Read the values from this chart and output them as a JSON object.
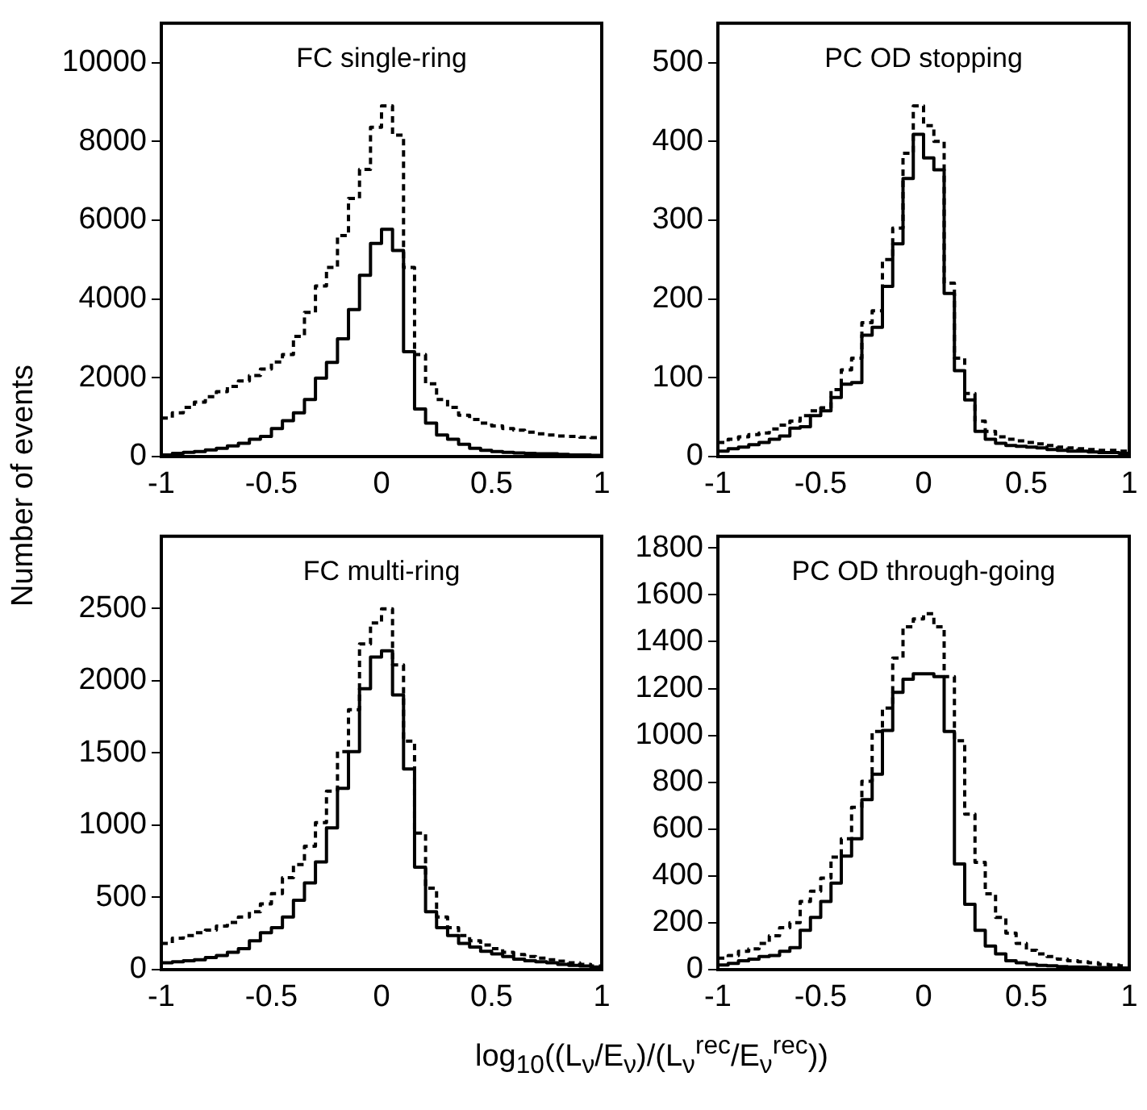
{
  "chart_data": [
    {
      "type": "histogram",
      "title": "FC single-ring",
      "ylabel": "Number of events",
      "bins": [
        -1,
        -0.95,
        -0.9,
        -0.85,
        -0.8,
        -0.75,
        -0.7,
        -0.65,
        -0.6,
        -0.55,
        -0.5,
        -0.45,
        -0.4,
        -0.35,
        -0.3,
        -0.25,
        -0.2,
        -0.15,
        -0.1,
        -0.05,
        0,
        0.05,
        0.1,
        0.15,
        0.2,
        0.25,
        0.3,
        0.35,
        0.4,
        0.45,
        0.5,
        0.55,
        0.6,
        0.65,
        0.7,
        0.75,
        0.8,
        0.85,
        0.9,
        0.95,
        1
      ],
      "series": [
        {
          "color": "#000000",
          "line_style": "solid",
          "values": [
            40,
            80,
            110,
            130,
            170,
            210,
            270,
            340,
            440,
            510,
            710,
            910,
            1110,
            1450,
            1990,
            2390,
            2990,
            3730,
            4600,
            5410,
            5770,
            5230,
            2660,
            1210,
            850,
            550,
            440,
            310,
            210,
            160,
            130,
            110,
            90,
            80,
            70,
            70,
            55,
            40,
            40,
            30
          ]
        },
        {
          "color": "#000000",
          "line_style": "dashed",
          "values": [
            980,
            1110,
            1250,
            1380,
            1520,
            1650,
            1780,
            1920,
            2060,
            2220,
            2400,
            2590,
            3050,
            3660,
            4330,
            4800,
            5610,
            6550,
            7290,
            8360,
            8900,
            8160,
            4800,
            2590,
            1850,
            1450,
            1250,
            1050,
            940,
            850,
            780,
            710,
            670,
            620,
            580,
            550,
            520,
            510,
            490,
            480
          ]
        }
      ],
      "xlim": [
        -1,
        1
      ],
      "xticks": [
        -1,
        -0.5,
        0,
        0.5,
        1
      ],
      "ylim": [
        0,
        11000
      ],
      "yticks": [
        0,
        2000,
        4000,
        6000,
        8000,
        10000
      ],
      "grid": false,
      "legend": false
    },
    {
      "type": "histogram",
      "title": "PC OD stopping",
      "bins": [
        -1,
        -0.95,
        -0.9,
        -0.85,
        -0.8,
        -0.75,
        -0.7,
        -0.65,
        -0.6,
        -0.55,
        -0.5,
        -0.45,
        -0.4,
        -0.35,
        -0.3,
        -0.25,
        -0.2,
        -0.15,
        -0.1,
        -0.05,
        0,
        0.05,
        0.1,
        0.15,
        0.2,
        0.25,
        0.3,
        0.35,
        0.4,
        0.45,
        0.5,
        0.55,
        0.6,
        0.65,
        0.7,
        0.75,
        0.8,
        0.85,
        0.9,
        0.95,
        1
      ],
      "series": [
        {
          "color": "#000000",
          "line_style": "solid",
          "values": [
            7,
            10,
            12,
            15,
            18,
            22,
            26,
            36,
            38,
            52,
            58,
            75,
            92,
            94,
            154,
            164,
            216,
            270,
            353,
            409,
            379,
            364,
            207,
            109,
            72,
            32,
            22,
            17,
            14,
            13,
            12,
            11,
            9,
            8,
            7,
            7,
            6,
            5,
            5,
            4
          ]
        },
        {
          "color": "#000000",
          "line_style": "dashed",
          "values": [
            18,
            22,
            25,
            28,
            30,
            35,
            40,
            45,
            52,
            58,
            62,
            85,
            110,
            125,
            170,
            185,
            250,
            290,
            385,
            445,
            420,
            400,
            220,
            125,
            80,
            45,
            32,
            25,
            22,
            20,
            18,
            16,
            14,
            12,
            11,
            10,
            9,
            8,
            8,
            7
          ]
        }
      ],
      "xlim": [
        -1,
        1
      ],
      "xticks": [
        -1,
        -0.5,
        0,
        0.5,
        1
      ],
      "ylim": [
        0,
        550
      ],
      "yticks": [
        0,
        100,
        200,
        300,
        400,
        500
      ],
      "grid": false,
      "legend": false
    },
    {
      "type": "histogram",
      "title": "FC multi-ring",
      "xlabel": "log$_{10}$((L$_{ν}$/E$_{ν}$)/(L$_{ν}$$^{rec}$/E$_{ν}$$^{rec}$))",
      "bins": [
        -1,
        -0.95,
        -0.9,
        -0.85,
        -0.8,
        -0.75,
        -0.7,
        -0.65,
        -0.6,
        -0.55,
        -0.5,
        -0.45,
        -0.4,
        -0.35,
        -0.3,
        -0.25,
        -0.2,
        -0.15,
        -0.1,
        -0.05,
        0,
        0.05,
        0.1,
        0.15,
        0.2,
        0.25,
        0.3,
        0.35,
        0.4,
        0.45,
        0.5,
        0.55,
        0.6,
        0.65,
        0.7,
        0.75,
        0.8,
        0.85,
        0.9,
        0.95,
        1
      ],
      "series": [
        {
          "color": "#000000",
          "line_style": "solid",
          "values": [
            47,
            55,
            62,
            69,
            84,
            98,
            120,
            145,
            200,
            255,
            291,
            364,
            480,
            600,
            745,
            982,
            1255,
            1509,
            1945,
            2164,
            2207,
            1902,
            1389,
            709,
            400,
            291,
            236,
            182,
            156,
            127,
            109,
            91,
            73,
            62,
            55,
            47,
            36,
            29,
            25,
            18
          ]
        },
        {
          "color": "#000000",
          "line_style": "dashed",
          "values": [
            182,
            218,
            236,
            255,
            273,
            302,
            327,
            364,
            400,
            455,
            527,
            636,
            727,
            855,
            1018,
            1236,
            1509,
            1800,
            2255,
            2400,
            2498,
            2109,
            1582,
            945,
            564,
            364,
            291,
            236,
            200,
            171,
            145,
            120,
            105,
            91,
            80,
            69,
            58,
            47,
            36,
            25
          ]
        }
      ],
      "xlim": [
        -1,
        1
      ],
      "xticks": [
        -1,
        -0.5,
        0,
        0.5,
        1
      ],
      "ylim": [
        0,
        3000
      ],
      "yticks": [
        0,
        500,
        1000,
        1500,
        2000,
        2500
      ],
      "grid": false,
      "legend": false
    },
    {
      "type": "histogram",
      "title": "PC OD through-going",
      "bins": [
        -1,
        -0.95,
        -0.9,
        -0.85,
        -0.8,
        -0.75,
        -0.7,
        -0.65,
        -0.6,
        -0.55,
        -0.5,
        -0.45,
        -0.4,
        -0.35,
        -0.3,
        -0.25,
        -0.2,
        -0.15,
        -0.1,
        -0.05,
        0,
        0.05,
        0.1,
        0.15,
        0.2,
        0.25,
        0.3,
        0.35,
        0.4,
        0.45,
        0.5,
        0.55,
        0.6,
        0.65,
        0.7,
        0.75,
        0.8,
        0.85,
        0.9,
        0.95,
        1
      ],
      "series": [
        {
          "color": "#000000",
          "line_style": "solid",
          "values": [
            20,
            27,
            38,
            45,
            56,
            60,
            78,
            94,
            168,
            223,
            291,
            369,
            485,
            559,
            726,
            834,
            1021,
            1184,
            1240,
            1263,
            1263,
            1251,
            1017,
            451,
            279,
            168,
            101,
            67,
            38,
            29,
            22,
            18,
            16,
            13,
            11,
            11,
            9,
            9,
            7,
            7
          ]
        },
        {
          "color": "#000000",
          "line_style": "dashed",
          "values": [
            49,
            60,
            78,
            89,
            112,
            145,
            179,
            201,
            291,
            335,
            391,
            480,
            559,
            693,
            804,
            1017,
            1117,
            1330,
            1464,
            1497,
            1520,
            1464,
            1251,
            977,
            664,
            458,
            324,
            223,
            156,
            112,
            83,
            67,
            56,
            45,
            38,
            34,
            29,
            22,
            20,
            16
          ]
        }
      ],
      "xlim": [
        -1,
        1
      ],
      "xticks": [
        -1,
        -0.5,
        0,
        0.5,
        1
      ],
      "ylim": [
        0,
        1850
      ],
      "yticks": [
        0,
        200,
        400,
        600,
        800,
        1000,
        1200,
        1400,
        1600,
        1800
      ],
      "grid": false,
      "legend": false
    }
  ]
}
